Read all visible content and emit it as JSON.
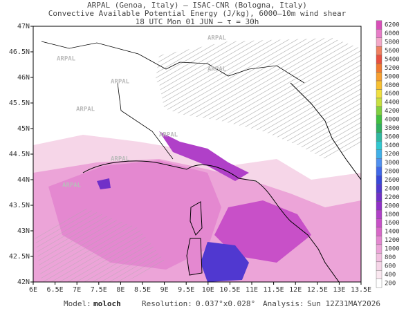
{
  "header": {
    "lines": [
      "ARPAL (Genoa, Italy)  –  ISAC-CNR (Bologna, Italy)",
      "Convective Available Potential Energy (J/kg), 6000–10m wind shear",
      "18 UTC Mon 01 JUN  –  τ = 30h"
    ]
  },
  "map": {
    "x_labels": [
      "6E",
      "6.5E",
      "7E",
      "7.5E",
      "8E",
      "8.5E",
      "9E",
      "9.5E",
      "10E",
      "10.5E",
      "11E",
      "11.5E",
      "12E",
      "12.5E",
      "13E",
      "13.5E"
    ],
    "y_labels": [
      "47N",
      "46.5N",
      "46N",
      "45.5N",
      "45N",
      "44.5N",
      "44N",
      "43.5N",
      "43N",
      "42.5N",
      "42N"
    ],
    "watermark": "ARPAL"
  },
  "colorbar": {
    "levels": [
      6200,
      6000,
      5800,
      5600,
      5400,
      5200,
      5000,
      4800,
      4600,
      4400,
      4200,
      4000,
      3800,
      3600,
      3400,
      3200,
      3000,
      2800,
      2600,
      2400,
      2200,
      2000,
      1800,
      1600,
      1400,
      1200,
      1000,
      800,
      600,
      400,
      200
    ],
    "colors": [
      "#d84fb8",
      "#e87cc8",
      "#f4a8c8",
      "#f08060",
      "#e85040",
      "#f07830",
      "#f8a030",
      "#f8c030",
      "#f0e040",
      "#c8e040",
      "#80d040",
      "#40c040",
      "#30b060",
      "#30b8a0",
      "#30c8d0",
      "#40b0e8",
      "#5090f0",
      "#4068e8",
      "#3848d8",
      "#5038d0",
      "#7030c8",
      "#9030c8",
      "#b040c8",
      "#c850c8",
      "#d868c8",
      "#e488d0",
      "#eca4d8",
      "#f2c0e0",
      "#f6d6e8",
      "#fae8f0",
      "#ffffff"
    ]
  },
  "footer": {
    "model_label": "Model:",
    "model": "moloch",
    "resolution_label": "Resolution:",
    "resolution": "0.037°x0.028°",
    "analysis_label": "Analysis:",
    "analysis": "Sun 12Z31MAY2026"
  }
}
